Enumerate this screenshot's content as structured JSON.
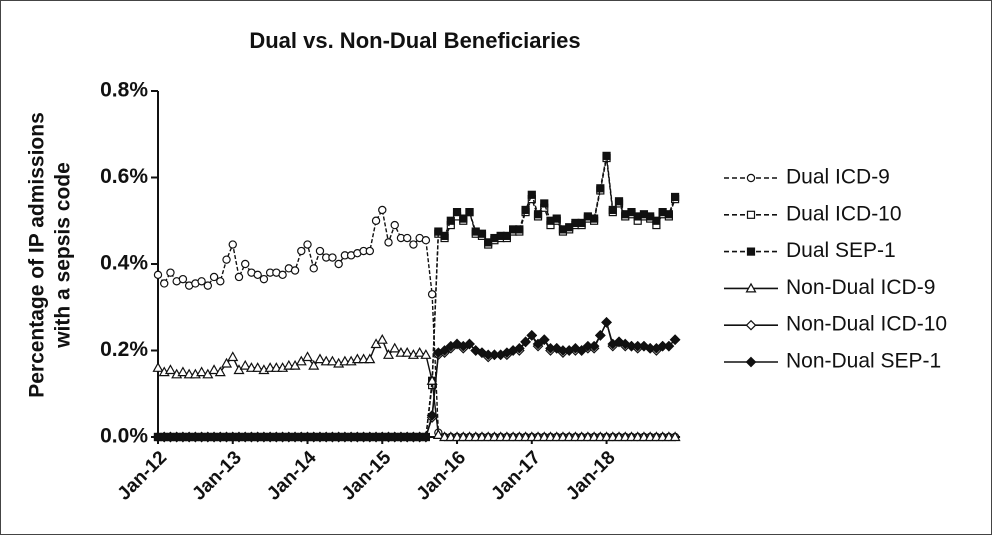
{
  "chart_data": {
    "type": "line",
    "title": "Dual vs. Non-Dual Beneficiaries",
    "ylabel": [
      "Percentage of IP admissions",
      "with a sepsis code"
    ],
    "categories": [
      "Jan-12",
      null,
      null,
      null,
      null,
      null,
      null,
      null,
      null,
      null,
      null,
      null,
      "Jan-13",
      null,
      null,
      null,
      null,
      null,
      null,
      null,
      null,
      null,
      null,
      null,
      "Jan-14",
      null,
      null,
      null,
      null,
      null,
      null,
      null,
      null,
      null,
      null,
      null,
      "Jan-15",
      null,
      null,
      null,
      null,
      null,
      null,
      null,
      null,
      null,
      null,
      null,
      "Jan-16",
      null,
      null,
      null,
      null,
      null,
      null,
      null,
      null,
      null,
      null,
      null,
      "Jan-17",
      null,
      null,
      null,
      null,
      null,
      null,
      null,
      null,
      null,
      null,
      null,
      "Jan-18",
      null,
      null,
      null,
      null,
      null,
      null,
      null,
      null,
      null,
      null,
      null
    ],
    "ylim": [
      0,
      0.8
    ],
    "yticks": [
      {
        "value": 0,
        "label": "0.0%"
      },
      {
        "value": 0.2,
        "label": "0.2%"
      },
      {
        "value": 0.4,
        "label": "0.4%"
      },
      {
        "value": 0.6,
        "label": "0.6%"
      },
      {
        "value": 0.8,
        "label": "0.8%"
      }
    ],
    "legend": "right",
    "series": [
      {
        "name": "Dual ICD-9",
        "color": "#111111",
        "dash": true,
        "marker": "circle-open",
        "values": [
          0.375,
          0.355,
          0.38,
          0.36,
          0.365,
          0.35,
          0.355,
          0.36,
          0.35,
          0.37,
          0.36,
          0.41,
          0.445,
          0.37,
          0.4,
          0.38,
          0.375,
          0.365,
          0.38,
          0.38,
          0.375,
          0.39,
          0.385,
          0.43,
          0.445,
          0.39,
          0.43,
          0.415,
          0.415,
          0.4,
          0.42,
          0.42,
          0.425,
          0.43,
          0.43,
          0.5,
          0.525,
          0.45,
          0.49,
          0.46,
          0.46,
          0.445,
          0.46,
          0.455,
          0.33,
          0.01,
          0,
          0,
          0,
          0,
          0,
          0,
          0,
          0,
          0,
          0,
          0,
          0,
          0,
          0,
          0,
          0,
          0,
          0,
          0,
          0,
          0,
          0,
          0,
          0,
          0,
          0,
          0,
          0,
          0,
          0,
          0,
          0,
          0,
          0,
          0,
          0,
          0,
          0
        ]
      },
      {
        "name": "Dual ICD-10",
        "color": "#111111",
        "dash": true,
        "marker": "square-open",
        "values": [
          0,
          0,
          0,
          0,
          0,
          0,
          0,
          0,
          0,
          0,
          0,
          0,
          0,
          0,
          0,
          0,
          0,
          0,
          0,
          0,
          0,
          0,
          0,
          0,
          0,
          0,
          0,
          0,
          0,
          0,
          0,
          0,
          0,
          0,
          0,
          0,
          0,
          0,
          0,
          0,
          0,
          0,
          0,
          0,
          0.12,
          0.47,
          0.46,
          0.49,
          0.51,
          0.5,
          0.52,
          0.47,
          0.465,
          0.445,
          0.455,
          0.46,
          0.46,
          0.475,
          0.475,
          0.52,
          0.55,
          0.51,
          0.53,
          0.49,
          0.5,
          0.475,
          0.48,
          0.49,
          0.49,
          0.505,
          0.5,
          0.57,
          0.645,
          0.52,
          0.54,
          0.51,
          0.515,
          0.5,
          0.51,
          0.505,
          0.49,
          0.515,
          0.51,
          0.55
        ]
      },
      {
        "name": "Dual SEP-1",
        "color": "#111111",
        "dash": true,
        "marker": "square-filled",
        "values": [
          0,
          0,
          0,
          0,
          0,
          0,
          0,
          0,
          0,
          0,
          0,
          0,
          0,
          0,
          0,
          0,
          0,
          0,
          0,
          0,
          0,
          0,
          0,
          0,
          0,
          0,
          0,
          0,
          0,
          0,
          0,
          0,
          0,
          0,
          0,
          0,
          0,
          0,
          0,
          0,
          0,
          0,
          0,
          0,
          0.13,
          0.475,
          0.465,
          0.5,
          0.52,
          0.505,
          0.52,
          0.475,
          0.47,
          0.45,
          0.46,
          0.465,
          0.465,
          0.48,
          0.48,
          0.525,
          0.56,
          0.515,
          0.54,
          0.5,
          0.505,
          0.48,
          0.485,
          0.495,
          0.495,
          0.51,
          0.505,
          0.575,
          0.65,
          0.525,
          0.545,
          0.515,
          0.52,
          0.51,
          0.515,
          0.51,
          0.5,
          0.52,
          0.515,
          0.555
        ]
      },
      {
        "name": "Non-Dual ICD-9",
        "color": "#111111",
        "dash": false,
        "marker": "triangle-open",
        "values": [
          0.16,
          0.15,
          0.155,
          0.145,
          0.15,
          0.145,
          0.145,
          0.15,
          0.145,
          0.155,
          0.15,
          0.17,
          0.185,
          0.155,
          0.165,
          0.16,
          0.16,
          0.155,
          0.16,
          0.16,
          0.16,
          0.165,
          0.165,
          0.175,
          0.185,
          0.165,
          0.18,
          0.175,
          0.175,
          0.17,
          0.175,
          0.175,
          0.18,
          0.18,
          0.18,
          0.215,
          0.225,
          0.19,
          0.205,
          0.195,
          0.195,
          0.19,
          0.195,
          0.19,
          0.13,
          0.005,
          0,
          0,
          0,
          0,
          0,
          0,
          0,
          0,
          0,
          0,
          0,
          0,
          0,
          0,
          0,
          0,
          0,
          0,
          0,
          0,
          0,
          0,
          0,
          0,
          0,
          0,
          0,
          0,
          0,
          0,
          0,
          0,
          0,
          0,
          0,
          0,
          0,
          0
        ]
      },
      {
        "name": "Non-Dual ICD-10",
        "color": "#111111",
        "dash": false,
        "marker": "diamond-open",
        "values": [
          0,
          0,
          0,
          0,
          0,
          0,
          0,
          0,
          0,
          0,
          0,
          0,
          0,
          0,
          0,
          0,
          0,
          0,
          0,
          0,
          0,
          0,
          0,
          0,
          0,
          0,
          0,
          0,
          0,
          0,
          0,
          0,
          0,
          0,
          0,
          0,
          0,
          0,
          0,
          0,
          0,
          0,
          0,
          0,
          0.045,
          0.19,
          0.195,
          0.205,
          0.215,
          0.205,
          0.215,
          0.2,
          0.195,
          0.185,
          0.19,
          0.19,
          0.19,
          0.2,
          0.2,
          0.22,
          0.235,
          0.21,
          0.225,
          0.2,
          0.205,
          0.195,
          0.2,
          0.2,
          0.2,
          0.205,
          0.205,
          0.235,
          0.265,
          0.21,
          0.22,
          0.21,
          0.21,
          0.205,
          0.21,
          0.205,
          0.2,
          0.21,
          0.21,
          0.225
        ]
      },
      {
        "name": "Non-Dual SEP-1",
        "color": "#111111",
        "dash": false,
        "marker": "diamond-filled",
        "values": [
          0,
          0,
          0,
          0,
          0,
          0,
          0,
          0,
          0,
          0,
          0,
          0,
          0,
          0,
          0,
          0,
          0,
          0,
          0,
          0,
          0,
          0,
          0,
          0,
          0,
          0,
          0,
          0,
          0,
          0,
          0,
          0,
          0,
          0,
          0,
          0,
          0,
          0,
          0,
          0,
          0,
          0,
          0,
          0,
          0.05,
          0.195,
          0.2,
          0.21,
          0.215,
          0.21,
          0.215,
          0.2,
          0.195,
          0.19,
          0.19,
          0.19,
          0.195,
          0.2,
          0.205,
          0.22,
          0.235,
          0.215,
          0.225,
          0.205,
          0.205,
          0.2,
          0.2,
          0.205,
          0.2,
          0.21,
          0.21,
          0.235,
          0.265,
          0.215,
          0.22,
          0.215,
          0.21,
          0.21,
          0.21,
          0.205,
          0.205,
          0.21,
          0.21,
          0.225
        ]
      }
    ]
  }
}
